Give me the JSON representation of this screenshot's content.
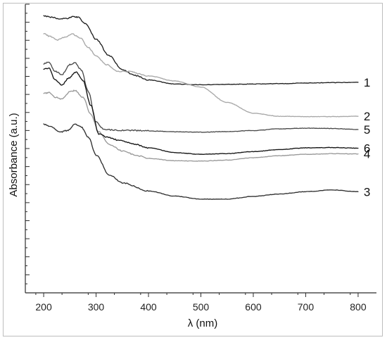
{
  "chart_data": {
    "type": "line",
    "xlabel": "λ (nm)",
    "ylabel": "Absorbance (a.u.)",
    "xlim": [
      165,
      835
    ],
    "ylim": [
      0,
      8.5
    ],
    "x_ticks": [
      200,
      300,
      400,
      500,
      600,
      700,
      800
    ],
    "y_tick_labels_shown": false,
    "grid": false,
    "legend": "curve-end labels at right",
    "series": [
      {
        "name": "1",
        "color": "#202020",
        "points": [
          [
            200,
            8.15
          ],
          [
            215,
            8.12
          ],
          [
            230,
            8.07
          ],
          [
            245,
            8.08
          ],
          [
            255,
            8.13
          ],
          [
            265,
            8.12
          ],
          [
            280,
            7.92
          ],
          [
            300,
            7.47
          ],
          [
            325,
            6.98
          ],
          [
            350,
            6.57
          ],
          [
            375,
            6.4
          ],
          [
            400,
            6.27
          ],
          [
            450,
            6.15
          ],
          [
            500,
            6.13
          ],
          [
            550,
            6.14
          ],
          [
            600,
            6.15
          ],
          [
            650,
            6.16
          ],
          [
            700,
            6.18
          ],
          [
            750,
            6.19
          ],
          [
            800,
            6.2
          ]
        ]
      },
      {
        "name": "2",
        "color": "#a8a8a8",
        "points": [
          [
            200,
            7.63
          ],
          [
            212,
            7.55
          ],
          [
            225,
            7.45
          ],
          [
            240,
            7.52
          ],
          [
            255,
            7.62
          ],
          [
            270,
            7.5
          ],
          [
            285,
            7.23
          ],
          [
            300,
            6.98
          ],
          [
            320,
            6.72
          ],
          [
            340,
            6.53
          ],
          [
            360,
            6.52
          ],
          [
            400,
            6.39
          ],
          [
            450,
            6.24
          ],
          [
            500,
            6.06
          ],
          [
            550,
            5.61
          ],
          [
            600,
            5.29
          ],
          [
            650,
            5.2
          ],
          [
            700,
            5.19
          ],
          [
            750,
            5.19
          ],
          [
            800,
            5.2
          ]
        ]
      },
      {
        "name": "3",
        "color": "#303030",
        "points": [
          [
            200,
            4.96
          ],
          [
            215,
            4.89
          ],
          [
            230,
            4.73
          ],
          [
            245,
            4.78
          ],
          [
            260,
            4.96
          ],
          [
            272,
            4.88
          ],
          [
            285,
            4.59
          ],
          [
            300,
            4.06
          ],
          [
            325,
            3.48
          ],
          [
            350,
            3.24
          ],
          [
            400,
            3.0
          ],
          [
            450,
            2.85
          ],
          [
            500,
            2.76
          ],
          [
            550,
            2.76
          ],
          [
            600,
            2.84
          ],
          [
            650,
            2.91
          ],
          [
            700,
            2.98
          ],
          [
            750,
            3.03
          ],
          [
            800,
            2.98
          ]
        ]
      },
      {
        "name": "4",
        "color": "#999999",
        "points": [
          [
            200,
            5.87
          ],
          [
            210,
            5.9
          ],
          [
            222,
            5.76
          ],
          [
            235,
            5.71
          ],
          [
            250,
            5.92
          ],
          [
            260,
            5.96
          ],
          [
            275,
            5.76
          ],
          [
            290,
            5.26
          ],
          [
            305,
            4.74
          ],
          [
            325,
            4.37
          ],
          [
            350,
            4.18
          ],
          [
            375,
            4.06
          ],
          [
            400,
            3.96
          ],
          [
            450,
            3.89
          ],
          [
            500,
            3.88
          ],
          [
            550,
            3.91
          ],
          [
            600,
            3.98
          ],
          [
            650,
            4.04
          ],
          [
            700,
            4.08
          ],
          [
            750,
            4.1
          ],
          [
            800,
            4.09
          ]
        ]
      },
      {
        "name": "5",
        "color": "#4a4a4a",
        "points": [
          [
            200,
            6.75
          ],
          [
            210,
            6.79
          ],
          [
            222,
            6.52
          ],
          [
            235,
            6.43
          ],
          [
            250,
            6.73
          ],
          [
            260,
            6.77
          ],
          [
            272,
            6.56
          ],
          [
            285,
            5.94
          ],
          [
            300,
            5.03
          ],
          [
            315,
            4.81
          ],
          [
            340,
            4.79
          ],
          [
            380,
            4.78
          ],
          [
            420,
            4.76
          ],
          [
            460,
            4.74
          ],
          [
            500,
            4.73
          ],
          [
            550,
            4.75
          ],
          [
            600,
            4.78
          ],
          [
            650,
            4.83
          ],
          [
            700,
            4.85
          ],
          [
            750,
            4.84
          ],
          [
            800,
            4.81
          ]
        ]
      },
      {
        "name": "6",
        "color": "#151515",
        "points": [
          [
            200,
            6.58
          ],
          [
            210,
            6.62
          ],
          [
            222,
            6.27
          ],
          [
            235,
            6.13
          ],
          [
            248,
            6.33
          ],
          [
            262,
            6.5
          ],
          [
            275,
            6.25
          ],
          [
            290,
            5.52
          ],
          [
            305,
            4.68
          ],
          [
            320,
            4.59
          ],
          [
            345,
            4.49
          ],
          [
            375,
            4.37
          ],
          [
            400,
            4.27
          ],
          [
            450,
            4.13
          ],
          [
            500,
            4.08
          ],
          [
            550,
            4.1
          ],
          [
            600,
            4.16
          ],
          [
            650,
            4.22
          ],
          [
            700,
            4.27
          ],
          [
            750,
            4.28
          ],
          [
            800,
            4.26
          ]
        ]
      }
    ]
  }
}
